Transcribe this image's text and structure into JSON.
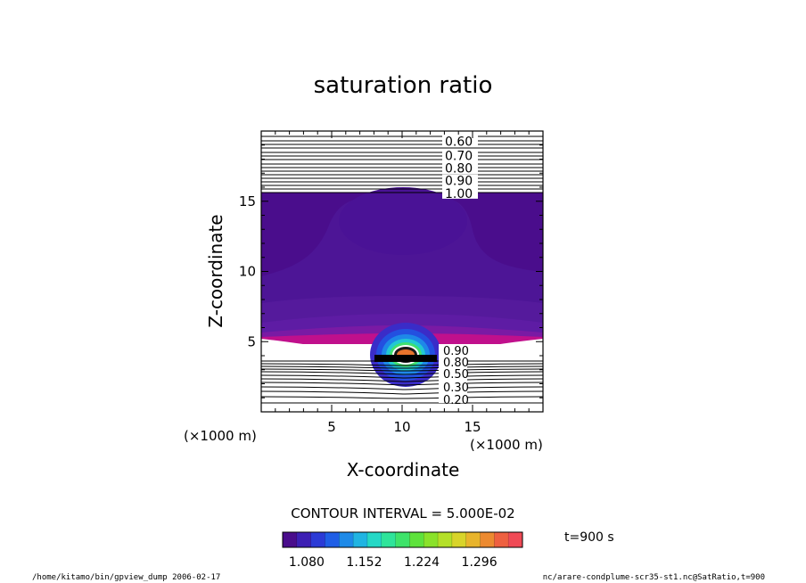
{
  "chart_data": {
    "type": "contour",
    "title": "saturation ratio",
    "xlabel": "X-coordinate",
    "ylabel": "Z-coordinate",
    "x_unit_label": "(×1000 m)",
    "y_unit_label": "(×1000 m)",
    "xlim": [
      0,
      20
    ],
    "ylim": [
      0,
      20
    ],
    "x_ticks": [
      5,
      10,
      15
    ],
    "y_ticks": [
      5,
      10,
      15
    ],
    "contour_interval_text": "CONTOUR INTERVAL = 5.000E-02",
    "time_label": "t=900 s",
    "upper_layer_contours": [
      {
        "value": "0.60",
        "z": 19.2
      },
      {
        "value": "0.70",
        "z": 18.2
      },
      {
        "value": "0.80",
        "z": 17.3
      },
      {
        "value": "0.90",
        "z": 16.4
      },
      {
        "value": "1.00",
        "z": 15.5
      }
    ],
    "lower_layer_labels": [
      "0.90",
      "0.80",
      "0.50",
      "0.30",
      "0.20"
    ],
    "colorbar": {
      "min": 1.05,
      "max": 1.35,
      "tick_values": [
        "1.080",
        "1.152",
        "1.224",
        "1.296"
      ],
      "colors": [
        "#4a0d8c",
        "#3d1fb4",
        "#2b3ad6",
        "#1f5ee6",
        "#1e8ae8",
        "#20b4e2",
        "#25d8c6",
        "#2fe49a",
        "#3ee36a",
        "#5ee23c",
        "#8ae22a",
        "#b4e028",
        "#d8d42a",
        "#e8b42c",
        "#ec8a30",
        "#ee6040",
        "#f04a56"
      ]
    }
  },
  "footer": {
    "left": "/home/kitamo/bin/gpview_dump  2006-02-17",
    "right": "nc/arare-condplume-scr35-st1.nc@SatRatio,t=900"
  }
}
